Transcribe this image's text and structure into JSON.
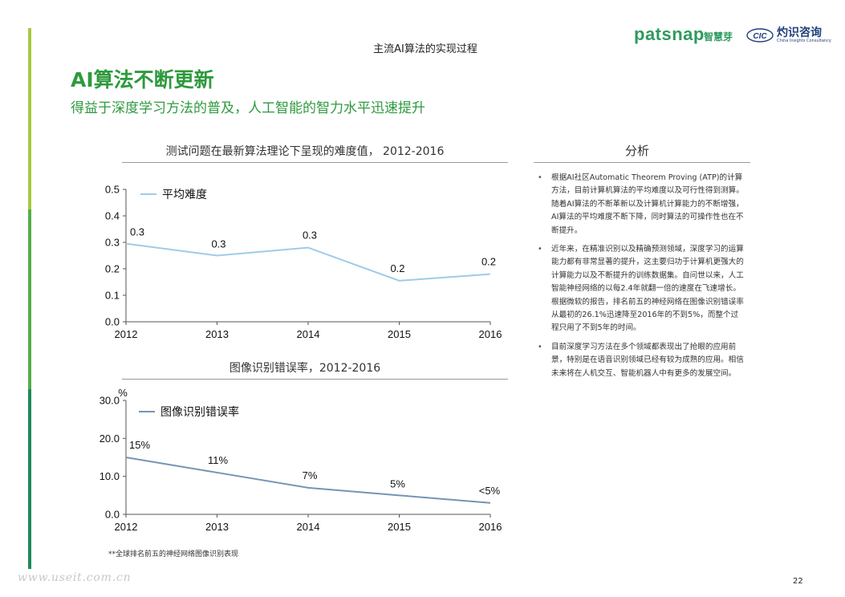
{
  "header": {
    "title": "主流AI算法的实现过程",
    "brand_patsnap": "patsnap",
    "brand_patsnap_cn": "智慧芽",
    "brand_cic_mark": "CIC",
    "brand_cic_cn": "灼识咨询",
    "brand_cic_en": "China Insights Consultancy"
  },
  "main_title": "AI算法不断更新",
  "sub_title": "得益于深度学习方法的普及，人工智能的智力水平迅速提升",
  "colors": {
    "accent_green": "#2e9a3e",
    "side_bar": [
      "#a7c93f",
      "#55ad48",
      "#1f8a5a"
    ],
    "line_light_blue": "#9fcbe9",
    "line_steel_blue": "#7694b3"
  },
  "chart_data": [
    {
      "type": "line",
      "title": "测试问题在最新算法理论下呈现的难度值， 2012-2016",
      "x": [
        "2012",
        "2013",
        "2014",
        "2015",
        "2016"
      ],
      "series": [
        {
          "name": "平均难度",
          "values": [
            0.295,
            0.25,
            0.28,
            0.155,
            0.18
          ],
          "data_labels": [
            "0.3",
            "0.3",
            "0.3",
            "0.2",
            "0.2"
          ]
        }
      ],
      "ylim": [
        0.0,
        0.5
      ],
      "yticks": [
        0.0,
        0.1,
        0.2,
        0.3,
        0.4,
        0.5
      ],
      "ytick_labels": [
        "0.0",
        "0.1",
        "0.2",
        "0.3",
        "0.4",
        "0.5"
      ],
      "ylabel": "",
      "xlabel": "",
      "legend": "top-left",
      "grid": false
    },
    {
      "type": "line",
      "title": "图像识别错误率，2012-2016",
      "x": [
        "2012",
        "2013",
        "2014",
        "2015",
        "2016"
      ],
      "series": [
        {
          "name": "图像识别错误率",
          "values": [
            15,
            11,
            7,
            5,
            3
          ],
          "data_labels": [
            "15%",
            "11%",
            "7%",
            "5%",
            "<5%"
          ]
        }
      ],
      "ylim": [
        0.0,
        30.0
      ],
      "yticks": [
        0.0,
        10.0,
        20.0,
        30.0
      ],
      "ytick_labels": [
        "0.0",
        "10.0",
        "20.0",
        "30.0"
      ],
      "ylabel": "%",
      "xlabel": "",
      "legend": "top-left",
      "grid": false
    }
  ],
  "analysis": {
    "title": "分析",
    "bullet": "•",
    "items": [
      "根据AI社区Automatic Theorem Proving (ATP)的计算方法，目前计算机算法的平均难度以及可行性得到测算。随着AI算法的不断革新以及计算机计算能力的不断增强，AI算法的平均难度不断下降，同时算法的可操作性也在不断提升。",
      "近年来，在精准识别以及精确预测领域，深度学习的运算能力都有非常显著的提升，这主要归功于计算机更强大的计算能力以及不断提升的训练数据集。自问世以来，人工智能神经网络的以每2.4年就翻一倍的速度在飞速增长。根据微软的报告，排名前五的神经网络在图像识别错误率从最初的26.1%迅速降至2016年的不到5%，而整个过程只用了不到5年的时间。",
      "目前深度学习方法在多个领域都表现出了抢眼的应用前景，特别是在语音识别领域已经有较为成熟的应用。相信未来将在人机交互、智能机器人中有更多的发展空间。"
    ]
  },
  "footnote": "**全球排名前五的神经网络图像识别表现",
  "watermark": "www.useit.com.cn",
  "page_number": "22"
}
